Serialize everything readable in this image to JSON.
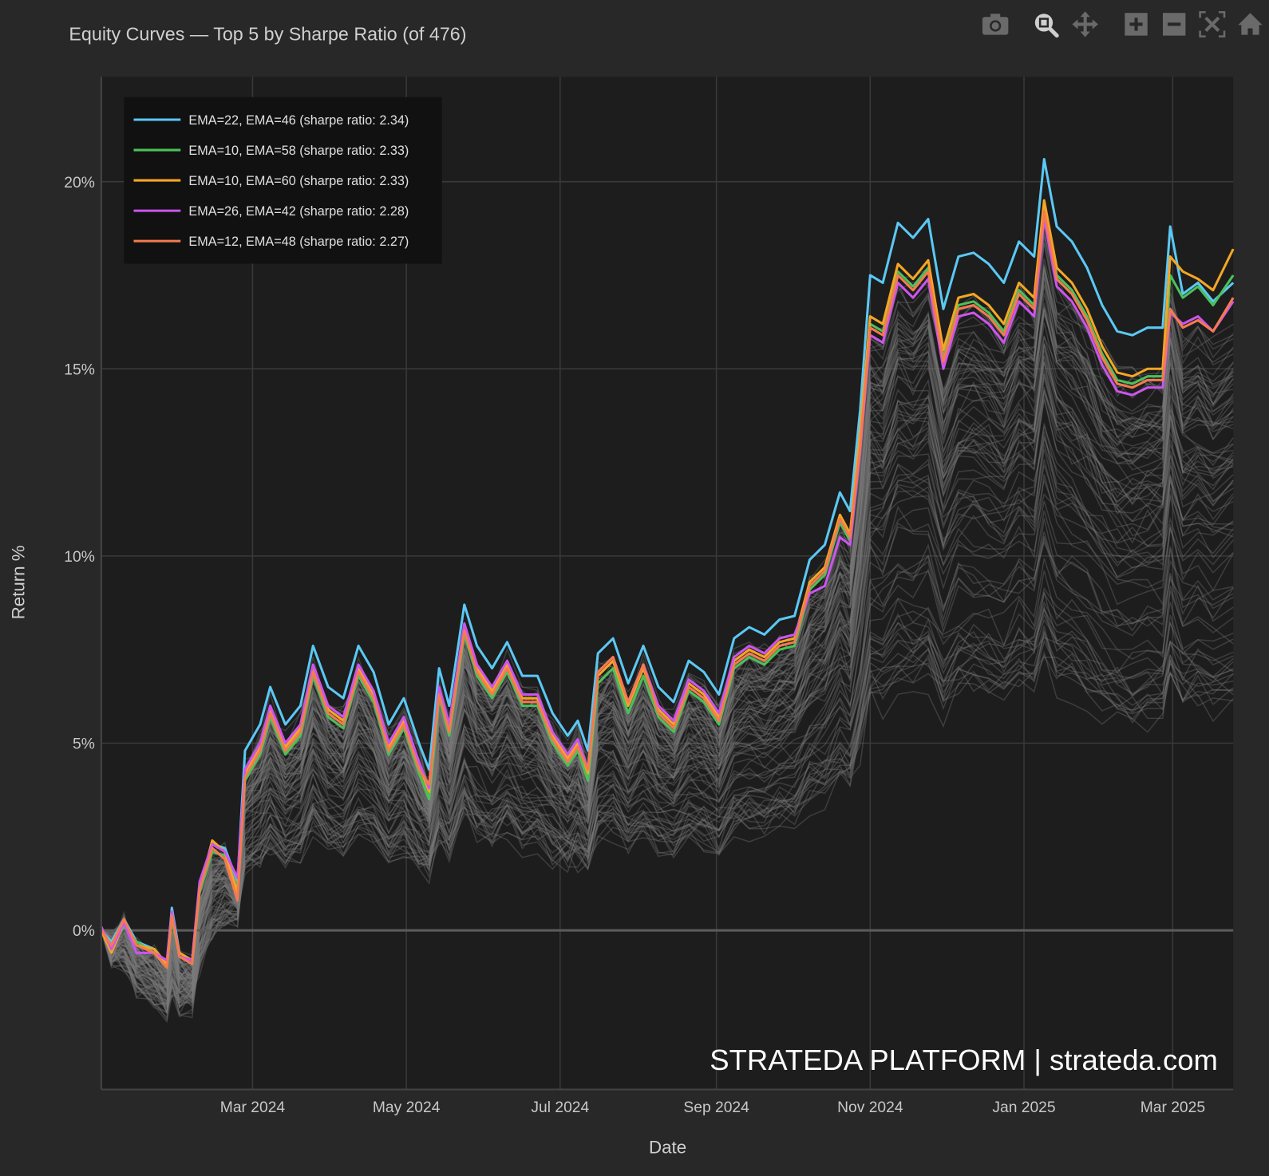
{
  "toolbar": {
    "items": [
      "camera-icon",
      "zoom-icon",
      "pan-icon",
      "zoom-in-icon",
      "zoom-out-icon",
      "autoscale-icon",
      "home-icon"
    ],
    "active": "zoom-icon"
  },
  "watermark": "STRATEDA PLATFORM | strateda.com",
  "chart_data": {
    "type": "line",
    "title": "Equity Curves — Top 5 by Sharpe Ratio (of 476)",
    "xlabel": "Date",
    "ylabel": "Return %",
    "xlim": [
      "2024-01-01",
      "2025-03-25"
    ],
    "ylim": [
      -4.25,
      22.8
    ],
    "grid": true,
    "legend_position": "top-left",
    "x_ticks": [
      {
        "date": "2024-03-01",
        "label": "Mar 2024"
      },
      {
        "date": "2024-05-01",
        "label": "May 2024"
      },
      {
        "date": "2024-07-01",
        "label": "Jul 2024"
      },
      {
        "date": "2024-09-01",
        "label": "Sep 2024"
      },
      {
        "date": "2024-11-01",
        "label": "Nov 2024"
      },
      {
        "date": "2025-01-01",
        "label": "Jan 2025"
      },
      {
        "date": "2025-03-01",
        "label": "Mar 2025"
      }
    ],
    "y_ticks": [
      {
        "value": 0,
        "label": "0%"
      },
      {
        "value": 5,
        "label": "5%"
      },
      {
        "value": 10,
        "label": "10%"
      },
      {
        "value": 15,
        "label": "15%"
      },
      {
        "value": 20,
        "label": "20%"
      }
    ],
    "background_series_color": "#7a7a7a",
    "x": [
      "2024-01-01",
      "2024-01-05",
      "2024-01-10",
      "2024-01-15",
      "2024-01-22",
      "2024-01-27",
      "2024-01-29",
      "2024-02-01",
      "2024-02-06",
      "2024-02-09",
      "2024-02-14",
      "2024-02-19",
      "2024-02-24",
      "2024-02-27",
      "2024-03-04",
      "2024-03-08",
      "2024-03-14",
      "2024-03-20",
      "2024-03-25",
      "2024-03-31",
      "2024-04-06",
      "2024-04-12",
      "2024-04-18",
      "2024-04-24",
      "2024-04-30",
      "2024-05-06",
      "2024-05-10",
      "2024-05-14",
      "2024-05-18",
      "2024-05-24",
      "2024-05-29",
      "2024-06-04",
      "2024-06-10",
      "2024-06-16",
      "2024-06-22",
      "2024-06-28",
      "2024-07-04",
      "2024-07-08",
      "2024-07-12",
      "2024-07-16",
      "2024-07-22",
      "2024-07-28",
      "2024-08-03",
      "2024-08-09",
      "2024-08-15",
      "2024-08-21",
      "2024-08-27",
      "2024-09-02",
      "2024-09-08",
      "2024-09-14",
      "2024-09-20",
      "2024-09-26",
      "2024-10-02",
      "2024-10-08",
      "2024-10-14",
      "2024-10-20",
      "2024-10-24",
      "2024-10-28",
      "2024-11-01",
      "2024-11-06",
      "2024-11-12",
      "2024-11-18",
      "2024-11-24",
      "2024-11-30",
      "2024-12-06",
      "2024-12-12",
      "2024-12-18",
      "2024-12-24",
      "2024-12-30",
      "2025-01-05",
      "2025-01-09",
      "2025-01-14",
      "2025-01-20",
      "2025-01-26",
      "2025-02-01",
      "2025-02-07",
      "2025-02-13",
      "2025-02-19",
      "2025-02-25",
      "2025-02-28",
      "2025-03-05",
      "2025-03-11",
      "2025-03-17",
      "2025-03-25"
    ],
    "series": [
      {
        "name": "EMA=22, EMA=46 (sharpe ratio: 2.34)",
        "color": "#5bc8f5",
        "values": [
          0,
          -0.3,
          0.3,
          -0.3,
          -0.5,
          -0.9,
          0.6,
          -0.6,
          -0.8,
          1.2,
          2.3,
          2.2,
          1.3,
          4.8,
          5.5,
          6.5,
          5.5,
          6.0,
          7.6,
          6.5,
          6.2,
          7.6,
          6.9,
          5.5,
          6.2,
          5.0,
          4.3,
          7.0,
          6.0,
          8.7,
          7.6,
          7.0,
          7.7,
          6.8,
          6.8,
          5.8,
          5.2,
          5.6,
          4.8,
          7.4,
          7.8,
          6.6,
          7.6,
          6.5,
          6.1,
          7.2,
          6.9,
          6.3,
          7.8,
          8.1,
          7.9,
          8.3,
          8.4,
          9.9,
          10.3,
          11.7,
          11.2,
          13.9,
          17.5,
          17.3,
          18.9,
          18.5,
          19.0,
          16.6,
          18.0,
          18.1,
          17.8,
          17.3,
          18.4,
          18.0,
          20.6,
          18.8,
          18.4,
          17.7,
          16.7,
          16.0,
          15.9,
          16.1,
          16.1,
          18.8,
          17.0,
          17.3,
          16.8,
          17.3
        ]
      },
      {
        "name": "EMA=10, EMA=58 (sharpe ratio: 2.33)",
        "color": "#4cc15a",
        "values": [
          0,
          -0.4,
          0.1,
          -0.3,
          -0.6,
          -1.0,
          0.3,
          -0.7,
          -0.9,
          1.0,
          2.1,
          2.0,
          1.1,
          4.0,
          4.7,
          5.7,
          4.7,
          5.2,
          6.8,
          5.7,
          5.4,
          6.8,
          6.1,
          4.7,
          5.4,
          4.2,
          3.5,
          6.2,
          5.2,
          7.9,
          6.8,
          6.2,
          6.9,
          6.0,
          6.0,
          5.0,
          4.4,
          4.8,
          4.0,
          6.6,
          7.0,
          5.8,
          6.8,
          5.7,
          5.3,
          6.4,
          6.1,
          5.5,
          7.0,
          7.3,
          7.1,
          7.5,
          7.6,
          9.1,
          9.5,
          10.9,
          10.4,
          13.1,
          16.2,
          16.0,
          17.6,
          17.2,
          17.7,
          15.3,
          16.7,
          16.8,
          16.5,
          16.0,
          17.1,
          16.7,
          19.3,
          17.5,
          17.1,
          16.4,
          15.4,
          14.7,
          14.6,
          14.8,
          14.8,
          17.5,
          16.9,
          17.2,
          16.7,
          17.5
        ]
      },
      {
        "name": "EMA=10, EMA=60 (sharpe ratio: 2.33)",
        "color": "#f5a623",
        "values": [
          0,
          -0.6,
          0.2,
          -0.4,
          -0.5,
          -0.9,
          0.4,
          -0.6,
          -0.8,
          1.1,
          2.4,
          2.1,
          1.0,
          4.2,
          4.9,
          5.9,
          4.9,
          5.4,
          7.0,
          5.9,
          5.6,
          7.0,
          6.3,
          4.9,
          5.6,
          4.4,
          3.7,
          6.4,
          5.4,
          8.1,
          7.0,
          6.4,
          7.1,
          6.2,
          6.2,
          5.2,
          4.6,
          5.0,
          4.2,
          6.8,
          7.2,
          6.0,
          7.0,
          5.9,
          5.5,
          6.6,
          6.3,
          5.7,
          7.2,
          7.5,
          7.3,
          7.7,
          7.8,
          9.3,
          9.7,
          11.1,
          10.6,
          13.3,
          16.4,
          16.2,
          17.8,
          17.4,
          17.9,
          15.5,
          16.9,
          17.0,
          16.7,
          16.2,
          17.3,
          16.9,
          19.5,
          17.7,
          17.3,
          16.6,
          15.6,
          14.9,
          14.8,
          15.0,
          15.0,
          18.0,
          17.6,
          17.4,
          17.1,
          18.2
        ]
      },
      {
        "name": "EMA=26, EMA=42 (sharpe ratio: 2.28)",
        "color": "#cc55ee",
        "values": [
          0.1,
          -0.5,
          0.2,
          -0.6,
          -0.6,
          -0.8,
          0.5,
          -0.7,
          -0.8,
          1.3,
          2.3,
          2.1,
          1.4,
          4.3,
          5.0,
          6.0,
          5.0,
          5.5,
          7.1,
          6.0,
          5.7,
          7.1,
          6.4,
          5.0,
          5.7,
          4.5,
          3.8,
          6.5,
          5.5,
          8.2,
          7.1,
          6.5,
          7.2,
          6.3,
          6.3,
          5.3,
          4.7,
          5.1,
          4.3,
          6.9,
          7.3,
          6.1,
          7.1,
          6.0,
          5.6,
          6.7,
          6.4,
          5.8,
          7.3,
          7.6,
          7.4,
          7.8,
          7.9,
          9.0,
          9.2,
          10.5,
          10.3,
          12.8,
          15.9,
          15.7,
          17.3,
          16.9,
          17.4,
          15.0,
          16.4,
          16.5,
          16.2,
          15.7,
          16.8,
          16.4,
          19.0,
          17.2,
          16.8,
          16.1,
          15.1,
          14.4,
          14.3,
          14.5,
          14.5,
          16.5,
          16.2,
          16.4,
          16.0,
          16.8
        ]
      },
      {
        "name": "EMA=12, EMA=48 (sharpe ratio: 2.27)",
        "color": "#f57a4f",
        "values": [
          0,
          -0.4,
          0.3,
          -0.4,
          -0.6,
          -1.0,
          0.4,
          -0.7,
          -0.9,
          1.1,
          2.2,
          1.9,
          0.8,
          4.1,
          4.8,
          5.8,
          4.8,
          5.3,
          6.9,
          5.8,
          5.5,
          6.9,
          6.2,
          4.8,
          5.5,
          4.3,
          3.9,
          6.3,
          5.3,
          8.0,
          6.9,
          6.3,
          7.0,
          6.1,
          6.1,
          5.1,
          4.5,
          4.9,
          4.3,
          6.9,
          7.3,
          6.1,
          7.1,
          5.8,
          5.4,
          6.5,
          6.2,
          5.6,
          7.1,
          7.4,
          7.2,
          7.6,
          7.7,
          9.2,
          9.6,
          11.0,
          10.5,
          12.9,
          16.1,
          15.9,
          17.5,
          17.1,
          17.6,
          15.2,
          16.6,
          16.7,
          16.4,
          15.9,
          17.0,
          16.6,
          19.2,
          17.4,
          17.0,
          16.3,
          15.3,
          14.6,
          14.5,
          14.7,
          14.7,
          16.6,
          16.1,
          16.3,
          16.0,
          16.9
        ]
      }
    ]
  }
}
